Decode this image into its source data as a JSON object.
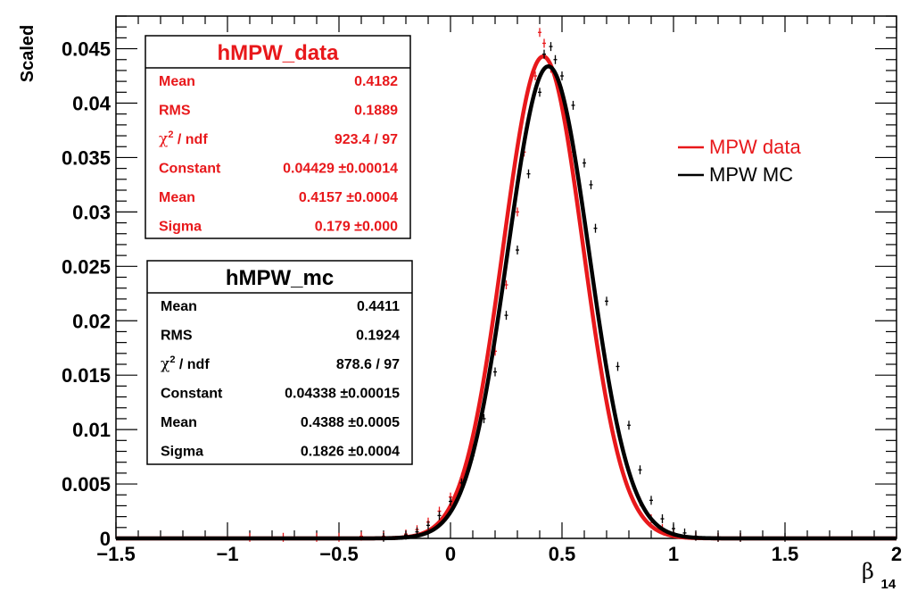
{
  "chart_data": {
    "type": "line",
    "xlabel_symbol": "β",
    "xlabel_subscript": "14",
    "ylabel": "Scaled",
    "xlim": [
      -1.5,
      2.0
    ],
    "ylim": [
      0,
      0.048
    ],
    "x_ticks": [
      -1.5,
      -1,
      -0.5,
      0,
      0.5,
      1,
      1.5,
      2
    ],
    "x_tick_labels": [
      "−1.5",
      "−1",
      "−0.5",
      "0",
      "0.5",
      "1",
      "1.5",
      "2"
    ],
    "y_ticks": [
      0,
      0.005,
      0.01,
      0.015,
      0.02,
      0.025,
      0.03,
      0.035,
      0.04,
      0.045
    ],
    "y_tick_labels": [
      "0",
      "0.005",
      "0.01",
      "0.015",
      "0.02",
      "0.025",
      "0.03",
      "0.035",
      "0.04",
      "0.045"
    ],
    "grid": false,
    "legend_position": "right",
    "series": [
      {
        "name": "MPW data",
        "color": "#e8181b",
        "fit": {
          "constant": 0.04429,
          "mean": 0.4157,
          "sigma": 0.179
        },
        "points": [
          [
            -0.9,
            0.0001
          ],
          [
            -0.75,
            0.0001
          ],
          [
            -0.6,
            0.0001
          ],
          [
            -0.5,
            0.0001
          ],
          [
            -0.4,
            0.0002
          ],
          [
            -0.3,
            0.0002
          ],
          [
            -0.2,
            0.0004
          ],
          [
            -0.15,
            0.0008
          ],
          [
            -0.1,
            0.0015
          ],
          [
            -0.05,
            0.0025
          ],
          [
            0.0,
            0.0038
          ],
          [
            0.05,
            0.0056
          ],
          [
            0.1,
            0.0085
          ],
          [
            0.15,
            0.0125
          ],
          [
            0.2,
            0.0172
          ],
          [
            0.25,
            0.0233
          ],
          [
            0.3,
            0.03
          ],
          [
            0.33,
            0.0355
          ],
          [
            0.36,
            0.0395
          ],
          [
            0.38,
            0.0425
          ],
          [
            0.4,
            0.0465
          ],
          [
            0.42,
            0.0455
          ],
          [
            0.45,
            0.0432
          ],
          [
            0.5,
            0.0411
          ],
          [
            0.55,
            0.0355
          ],
          [
            0.6,
            0.0293
          ],
          [
            0.65,
            0.0222
          ],
          [
            0.7,
            0.0155
          ],
          [
            0.75,
            0.0103
          ],
          [
            0.8,
            0.0062
          ],
          [
            0.85,
            0.0034
          ],
          [
            0.9,
            0.0018
          ],
          [
            0.95,
            0.0009
          ],
          [
            1.0,
            0.0005
          ],
          [
            1.1,
            0.0002
          ],
          [
            1.2,
            0.0001
          ],
          [
            1.3,
            0.0001
          ]
        ]
      },
      {
        "name": "MPW MC",
        "color": "#000000",
        "fit": {
          "constant": 0.04338,
          "mean": 0.4388,
          "sigma": 0.1826
        },
        "points": [
          [
            -0.3,
            0.0001
          ],
          [
            -0.2,
            0.0003
          ],
          [
            -0.15,
            0.0006
          ],
          [
            -0.1,
            0.0012
          ],
          [
            -0.05,
            0.0021
          ],
          [
            0.0,
            0.0034
          ],
          [
            0.05,
            0.0051
          ],
          [
            0.1,
            0.0076
          ],
          [
            0.15,
            0.011
          ],
          [
            0.2,
            0.0153
          ],
          [
            0.25,
            0.0205
          ],
          [
            0.3,
            0.0265
          ],
          [
            0.35,
            0.0335
          ],
          [
            0.4,
            0.041
          ],
          [
            0.42,
            0.0445
          ],
          [
            0.45,
            0.0452
          ],
          [
            0.47,
            0.044
          ],
          [
            0.5,
            0.0425
          ],
          [
            0.55,
            0.0398
          ],
          [
            0.6,
            0.0345
          ],
          [
            0.63,
            0.0325
          ],
          [
            0.65,
            0.0285
          ],
          [
            0.7,
            0.0218
          ],
          [
            0.75,
            0.0158
          ],
          [
            0.8,
            0.0104
          ],
          [
            0.85,
            0.0063
          ],
          [
            0.9,
            0.0035
          ],
          [
            0.95,
            0.0018
          ],
          [
            1.0,
            0.0009
          ],
          [
            1.05,
            0.0005
          ],
          [
            1.1,
            0.0002
          ],
          [
            1.2,
            0.0001
          ],
          [
            1.3,
            0.0001
          ],
          [
            1.5,
            0.0001
          ]
        ]
      }
    ]
  },
  "stat_boxes": [
    {
      "title": "hMPW_data",
      "color": "#e8181b",
      "rows": [
        {
          "label": "Mean",
          "value": "0.4182"
        },
        {
          "label": "RMS",
          "value": "0.1889"
        },
        {
          "label_symbol": "χ",
          "label_sup": "2",
          "label_rest": " / ndf",
          "value": "923.4 / 97"
        },
        {
          "label": "Constant",
          "value": "0.04429 ±0.00014"
        },
        {
          "label": "Mean",
          "value": "0.4157 ±0.0004"
        },
        {
          "label": "Sigma",
          "value": "0.179 ±0.000"
        }
      ]
    },
    {
      "title": "hMPW_mc",
      "color": "#000000",
      "rows": [
        {
          "label": "Mean",
          "value": "0.4411"
        },
        {
          "label": "RMS",
          "value": "0.1924"
        },
        {
          "label_symbol": "χ",
          "label_sup": "2",
          "label_rest": " / ndf",
          "value": "878.6 / 97"
        },
        {
          "label": "Constant",
          "value": "0.04338 ±0.00015"
        },
        {
          "label": "Mean",
          "value": "0.4388 ±0.0005"
        },
        {
          "label": "Sigma",
          "value": "0.1826 ±0.0004"
        }
      ]
    }
  ],
  "legend": [
    {
      "label": "MPW data",
      "color": "#e8181b"
    },
    {
      "label": "MPW MC",
      "color": "#000000"
    }
  ]
}
